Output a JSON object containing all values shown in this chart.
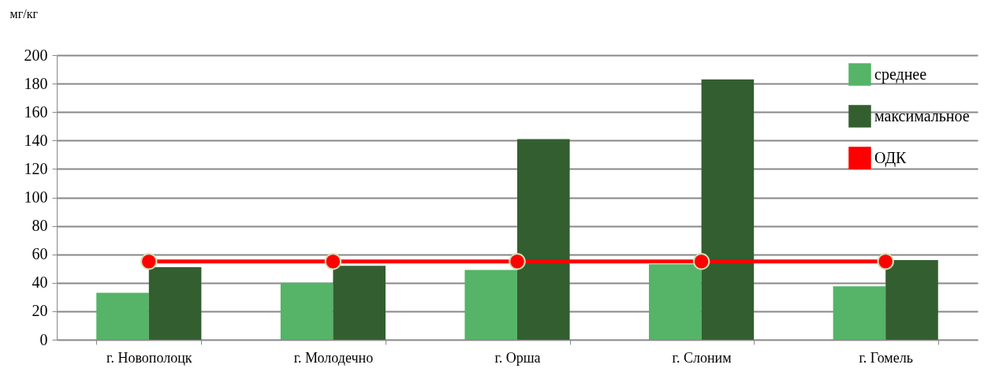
{
  "chart_data": {
    "type": "bar",
    "ylabel": "мг/кг",
    "categories": [
      "г. Новополоцк",
      "г. Молодечно",
      "г. Орша",
      "г. Слоним",
      "г. Гомель"
    ],
    "series": [
      {
        "name": "среднее",
        "color": "#55b467",
        "values": [
          33,
          40,
          49,
          53,
          37.5
        ]
      },
      {
        "name": "максимальное",
        "color": "#335e2f",
        "values": [
          51,
          52,
          141,
          183,
          56
        ]
      },
      {
        "name": "ОДК",
        "type": "line",
        "color": "#ff0000",
        "marker": "circle",
        "values": [
          55,
          55,
          55,
          55,
          55
        ]
      }
    ],
    "ylim": [
      0,
      200
    ],
    "yticks": [
      0,
      20,
      40,
      60,
      80,
      100,
      120,
      140,
      160,
      180,
      200
    ],
    "grid": "y",
    "legend": "top right"
  }
}
